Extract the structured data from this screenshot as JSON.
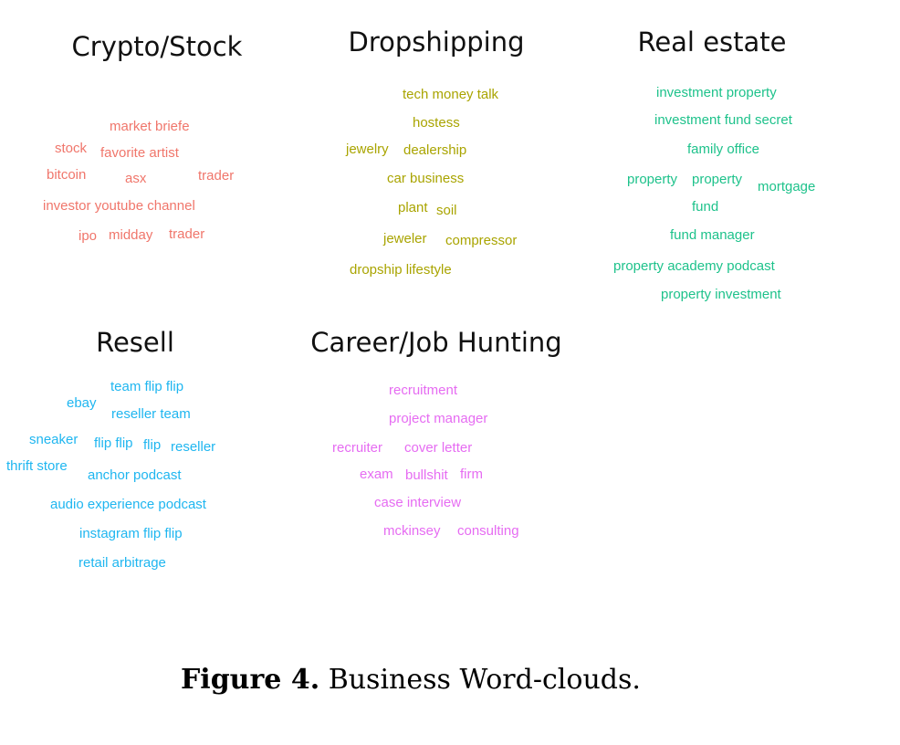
{
  "clouds": [
    {
      "title": "Crypto/Stock",
      "color": "#f0766b",
      "words": [
        "market briefe",
        "stock",
        "favorite artist",
        "bitcoin",
        "asx",
        "trader",
        "investor youtube channel",
        "ipo",
        "midday",
        "trader"
      ]
    },
    {
      "title": "Dropshipping",
      "color": "#a9a400",
      "words": [
        "tech money talk",
        "hostess",
        "jewelry",
        "dealership",
        "car business",
        "plant",
        "soil",
        "jeweler",
        "compressor",
        "dropship lifestyle"
      ]
    },
    {
      "title": "Real estate",
      "color": "#1ec28b",
      "words": [
        "investment property",
        "investment fund secret",
        "family office",
        "property",
        "property",
        "mortgage",
        "fund",
        "fund manager",
        "property academy podcast",
        "property investment"
      ]
    },
    {
      "title": "Resell",
      "color": "#1fb6f0",
      "words": [
        "team flip flip",
        "ebay",
        "reseller team",
        "sneaker",
        "flip flip",
        "flip",
        "reseller",
        "thrift store",
        "anchor podcast",
        "audio experience podcast",
        "instagram flip flip",
        "retail arbitrage"
      ]
    },
    {
      "title": "Career/Job Hunting",
      "color": "#e66cf2",
      "words": [
        "recruitment",
        "project manager",
        "recruiter",
        "cover letter",
        "exam",
        "bullshit",
        "firm",
        "case interview",
        "mckinsey",
        "consulting"
      ]
    }
  ],
  "caption": {
    "label": "Figure 4.",
    "text": "Business Word-clouds."
  }
}
